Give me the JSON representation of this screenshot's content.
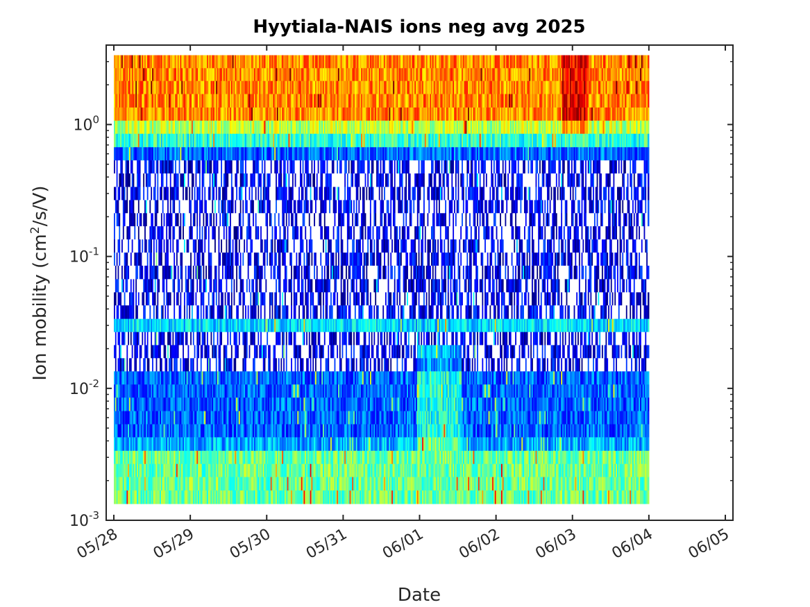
{
  "chart_data": {
    "type": "heatmap",
    "title": "Hyytiala-NAIS ions neg avg 2025",
    "xlabel": "Date",
    "ylabel_main": "Ion mobility (cm",
    "ylabel_sup": "2",
    "ylabel_tail": "/s/V)",
    "x_ticks": [
      "05/28",
      "05/29",
      "05/30",
      "05/31",
      "06/01",
      "06/02",
      "06/03",
      "06/04",
      "06/05"
    ],
    "x_range_days": [
      -0.1,
      8.1
    ],
    "data_x_range_days": [
      0,
      7
    ],
    "y_scale": "log",
    "y_range": [
      0.001,
      4.0
    ],
    "y_ticks": [
      {
        "value": 0.001,
        "base": "10",
        "exp": "-3"
      },
      {
        "value": 0.01,
        "base": "10",
        "exp": "-2"
      },
      {
        "value": 0.1,
        "base": "10",
        "exp": "-1"
      },
      {
        "value": 1.0,
        "base": "10",
        "exp": "0"
      }
    ],
    "mobility_bins": [
      0.0015,
      0.0019,
      0.0024,
      0.003,
      0.0038,
      0.0048,
      0.006,
      0.0076,
      0.0096,
      0.012,
      0.0152,
      0.019,
      0.024,
      0.03,
      0.038,
      0.048,
      0.06,
      0.076,
      0.096,
      0.12,
      0.152,
      0.19,
      0.24,
      0.3,
      0.38,
      0.48,
      0.6,
      0.76,
      0.96,
      1.2,
      1.52,
      1.92,
      2.4,
      3.0
    ],
    "colormap": "jet",
    "missing_color": "#ffffff",
    "grid": false
  }
}
